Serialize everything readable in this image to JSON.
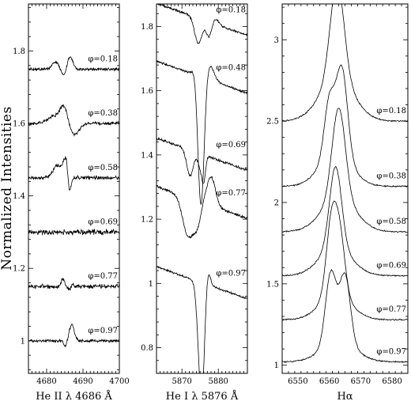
{
  "figure": {
    "ylabel": "Normalized Intensities",
    "colors": {
      "line": "#000000",
      "frame": "#000000",
      "background": "#ffffff"
    }
  },
  "chart_data": [
    {
      "type": "line",
      "xlabel": "He II λ 4686 Å",
      "xlim": [
        4675,
        4700
      ],
      "ylim": [
        0.91,
        1.93
      ],
      "xticks": [
        4680,
        4690,
        4700
      ],
      "yticks": [
        1,
        1.2,
        1.4,
        1.6,
        1.8
      ],
      "line_center": 4686,
      "continuum_slope": 0,
      "series": [
        {
          "name": "φ=0.18",
          "offset": 1.75,
          "features": [
            [
              -3.6,
              0.02,
              0.9
            ],
            [
              -1.2,
              -0.02,
              0.7
            ],
            [
              0.4,
              0.035,
              0.8
            ]
          ],
          "noise": 0.005
        },
        {
          "name": "φ=0.38",
          "offset": 1.6,
          "features": [
            [
              -4.0,
              0.02,
              1.6
            ],
            [
              -1.3,
              0.045,
              1.0
            ],
            [
              1.7,
              -0.03,
              1.2
            ]
          ],
          "noise": 0.006
        },
        {
          "name": "φ=0.58",
          "offset": 1.45,
          "features": [
            [
              -3.0,
              0.035,
              1.2
            ],
            [
              -0.8,
              0.05,
              0.6
            ],
            [
              0.3,
              -0.045,
              0.4
            ]
          ],
          "noise": 0.006
        },
        {
          "name": "φ=0.69",
          "offset": 1.3,
          "features": [],
          "noise": 0.009
        },
        {
          "name": "φ=0.77",
          "offset": 1.15,
          "features": [
            [
              -1.5,
              0.02,
              0.5
            ],
            [
              0.5,
              -0.01,
              0.6
            ],
            [
              1.0,
              0.01,
              0.4
            ]
          ],
          "noise": 0.007
        },
        {
          "name": "φ=0.97",
          "offset": 1.0,
          "features": [
            [
              -0.8,
              -0.015,
              0.5
            ],
            [
              0.9,
              0.045,
              0.7
            ]
          ],
          "noise": 0.005
        }
      ]
    },
    {
      "type": "line",
      "xlabel": "He I λ 5876 Å",
      "xlim": [
        5863,
        5888
      ],
      "ylim": [
        0.72,
        1.87
      ],
      "xticks": [
        5870,
        5880
      ],
      "yticks": [
        0.8,
        1,
        1.2,
        1.4,
        1.6,
        1.8
      ],
      "line_center": 5876,
      "continuum_slope": -0.004,
      "series": [
        {
          "name": "φ=0.18",
          "offset": 1.82,
          "features": [
            [
              -1.5,
              -0.08,
              1.0
            ],
            [
              1.5,
              -0.05,
              0.8
            ],
            [
              3.0,
              0.02,
              1.0
            ]
          ],
          "noise": 0.004
        },
        {
          "name": "φ=0.48",
          "offset": 1.64,
          "features": [
            [
              -2.0,
              0.05,
              0.8
            ],
            [
              -0.8,
              -0.42,
              0.9
            ],
            [
              1.5,
              0.05,
              1.2
            ]
          ],
          "noise": 0.004
        },
        {
          "name": "φ=0.69",
          "offset": 1.4,
          "features": [
            [
              -3.8,
              -0.08,
              0.9
            ],
            [
              -0.9,
              -0.04,
              0.7
            ],
            [
              0.0,
              -0.07,
              0.5
            ]
          ],
          "noise": 0.005
        },
        {
          "name": "φ=0.77",
          "offset": 1.25,
          "features": [
            [
              -4.3,
              -0.12,
              1.5
            ],
            [
              -1.8,
              -0.06,
              1.0
            ],
            [
              2.0,
              0.09,
              1.2
            ]
          ],
          "noise": 0.005
        },
        {
          "name": "φ=0.97",
          "offset": 1.0,
          "features": [
            [
              -0.6,
              -0.36,
              0.9
            ],
            [
              0.9,
              0.08,
              0.7
            ]
          ],
          "noise": 0.004
        }
      ]
    },
    {
      "type": "line",
      "xlabel": "Hα",
      "xlim": [
        6545,
        6585
      ],
      "ylim": [
        0.95,
        3.22
      ],
      "xticks": [
        6550,
        6560,
        6570,
        6580
      ],
      "yticks": [
        1,
        1.5,
        2,
        2.5,
        3
      ],
      "line_center": 6563,
      "continuum_slope": 0,
      "series": [
        {
          "name": "φ=0.18",
          "offset": 2.5,
          "features": [
            [
              -0.5,
              0.6,
              2.2
            ],
            [
              -0.6,
              0.25,
              5.5
            ]
          ],
          "noise": 0.005
        },
        {
          "name": "φ=0.38",
          "offset": 2.1,
          "features": [
            [
              1.0,
              0.54,
              1.8
            ],
            [
              -3.0,
              0.34,
              1.6
            ],
            [
              -1.0,
              0.2,
              5.0
            ]
          ],
          "noise": 0.005
        },
        {
          "name": "φ=0.58",
          "offset": 1.82,
          "features": [
            [
              0.0,
              0.56,
              2.1
            ],
            [
              0.0,
              0.2,
              5.5
            ]
          ],
          "noise": 0.005
        },
        {
          "name": "φ=0.69",
          "offset": 1.55,
          "features": [
            [
              -1.0,
              0.5,
              1.9
            ],
            [
              -1.0,
              0.17,
              5.2
            ]
          ],
          "noise": 0.005
        },
        {
          "name": "φ=0.77",
          "offset": 1.28,
          "features": [
            [
              -2.2,
              0.47,
              1.7
            ],
            [
              0.5,
              0.32,
              1.6
            ],
            [
              -1.0,
              0.15,
              5.0
            ]
          ],
          "noise": 0.005
        },
        {
          "name": "φ=0.97",
          "offset": 1.02,
          "features": [
            [
              -2.5,
              0.44,
              1.7
            ],
            [
              2.0,
              0.42,
              1.7
            ],
            [
              0.0,
              0.12,
              5.5
            ]
          ],
          "noise": 0.005
        }
      ]
    }
  ]
}
